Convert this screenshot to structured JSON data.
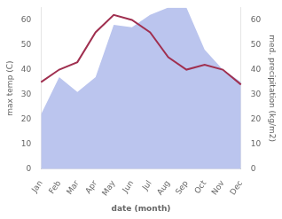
{
  "chart_data": {
    "type": "line",
    "xlabel": "date (month)",
    "ylabel": "max temp (C)",
    "y2label": "med. precipitation (kg/m2)",
    "categories": [
      "Jan",
      "Feb",
      "Mar",
      "Apr",
      "May",
      "Jun",
      "Jul",
      "Aug",
      "Sep",
      "Oct",
      "Nov",
      "Dec"
    ],
    "series": [
      {
        "type": "area",
        "color": "#bbc5ee",
        "values": [
          22,
          37,
          31,
          37,
          58,
          57,
          62,
          65,
          65,
          48,
          40,
          35
        ]
      },
      {
        "type": "line",
        "color": "#a03050",
        "values": [
          35,
          40,
          43,
          55,
          62,
          60,
          55,
          45,
          40,
          42,
          40,
          34
        ]
      }
    ],
    "ylim": [
      0,
      65
    ],
    "yticks": [
      0,
      10,
      20,
      30,
      40,
      50,
      60
    ],
    "y2lim": [
      0,
      65
    ],
    "y2ticks": [
      0,
      10,
      20,
      30,
      40,
      50,
      60
    ],
    "grid": false
  }
}
